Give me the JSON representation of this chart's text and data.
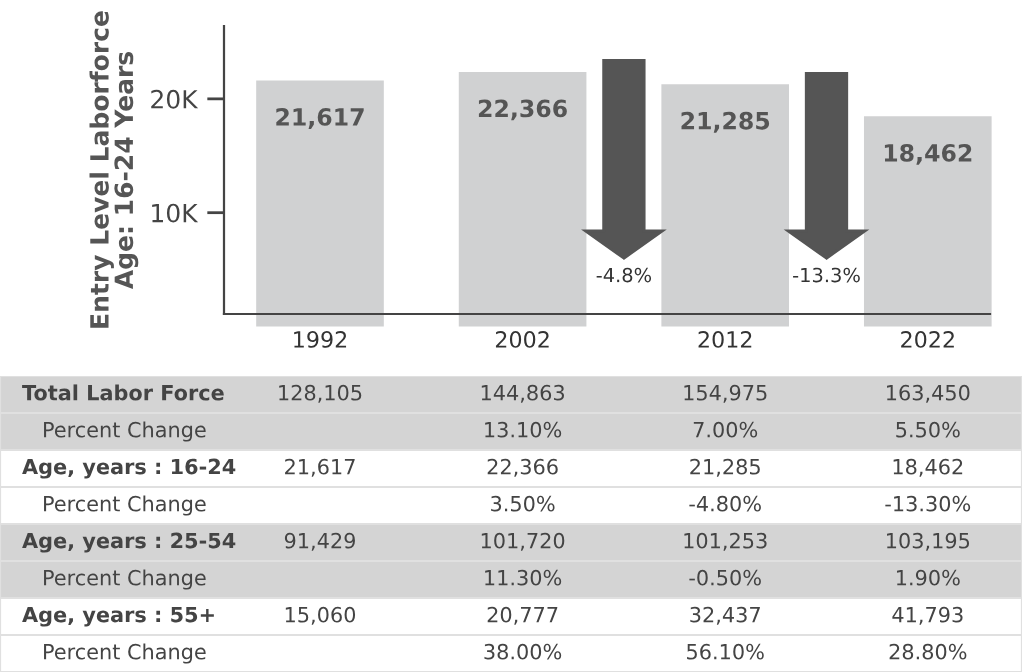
{
  "chart_data": {
    "type": "bar",
    "ylabel": "Entry Level Laborforce\nAge: 16-24 Years",
    "categories": [
      "1992",
      "2002",
      "2012",
      "2022"
    ],
    "values": [
      21617,
      22366,
      21285,
      18462
    ],
    "value_labels": [
      "21,617",
      "22,366",
      "21,285",
      "18,462"
    ],
    "color": "#d0d1d2",
    "ylim": [
      1100,
      26400
    ],
    "yticks": [
      {
        "value": 10000,
        "label": "10K"
      },
      {
        "value": 20000,
        "label": "20K"
      }
    ],
    "grid": false,
    "annotations": [
      "-4.8%",
      "-13.3%",
      "Total Labor Force",
      "128,105",
      "144,863",
      "154,975",
      "163,450",
      "Percent Change",
      "13.10%",
      "7.00%",
      "5.50%",
      "Age, years : 16-24",
      "21,617",
      "22,366",
      "21,285",
      "18,462",
      "Percent Change",
      "3.50%",
      "-4.80%",
      "-13.30%",
      "Age, years : 25-54",
      "91,429",
      "101,720",
      "101,253",
      "103,195",
      "Percent Change",
      "11.30%",
      "-0.50%",
      "1.90%",
      "Age, years : 55+",
      "15,060",
      "20,777",
      "32,437",
      "41,793",
      "Percent Change",
      "38.00%",
      "56.10%",
      "28.80%"
    ]
  }
}
